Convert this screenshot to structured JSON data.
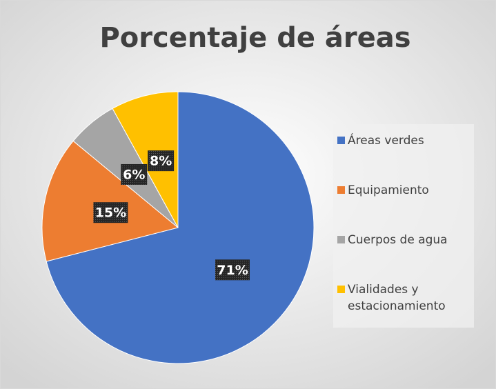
{
  "chart_data": {
    "type": "pie",
    "title": "Porcentaje de áreas",
    "categories": [
      "Áreas verdes",
      "Equipamiento",
      "Cuerpos de agua",
      "Vialidades y estacionamiento"
    ],
    "values": [
      71,
      15,
      6,
      8
    ],
    "value_labels": [
      "71%",
      "15%",
      "6%",
      "8%"
    ],
    "colors": [
      "#4472c4",
      "#ed7d31",
      "#a5a5a5",
      "#ffc000"
    ],
    "legend": "right"
  }
}
